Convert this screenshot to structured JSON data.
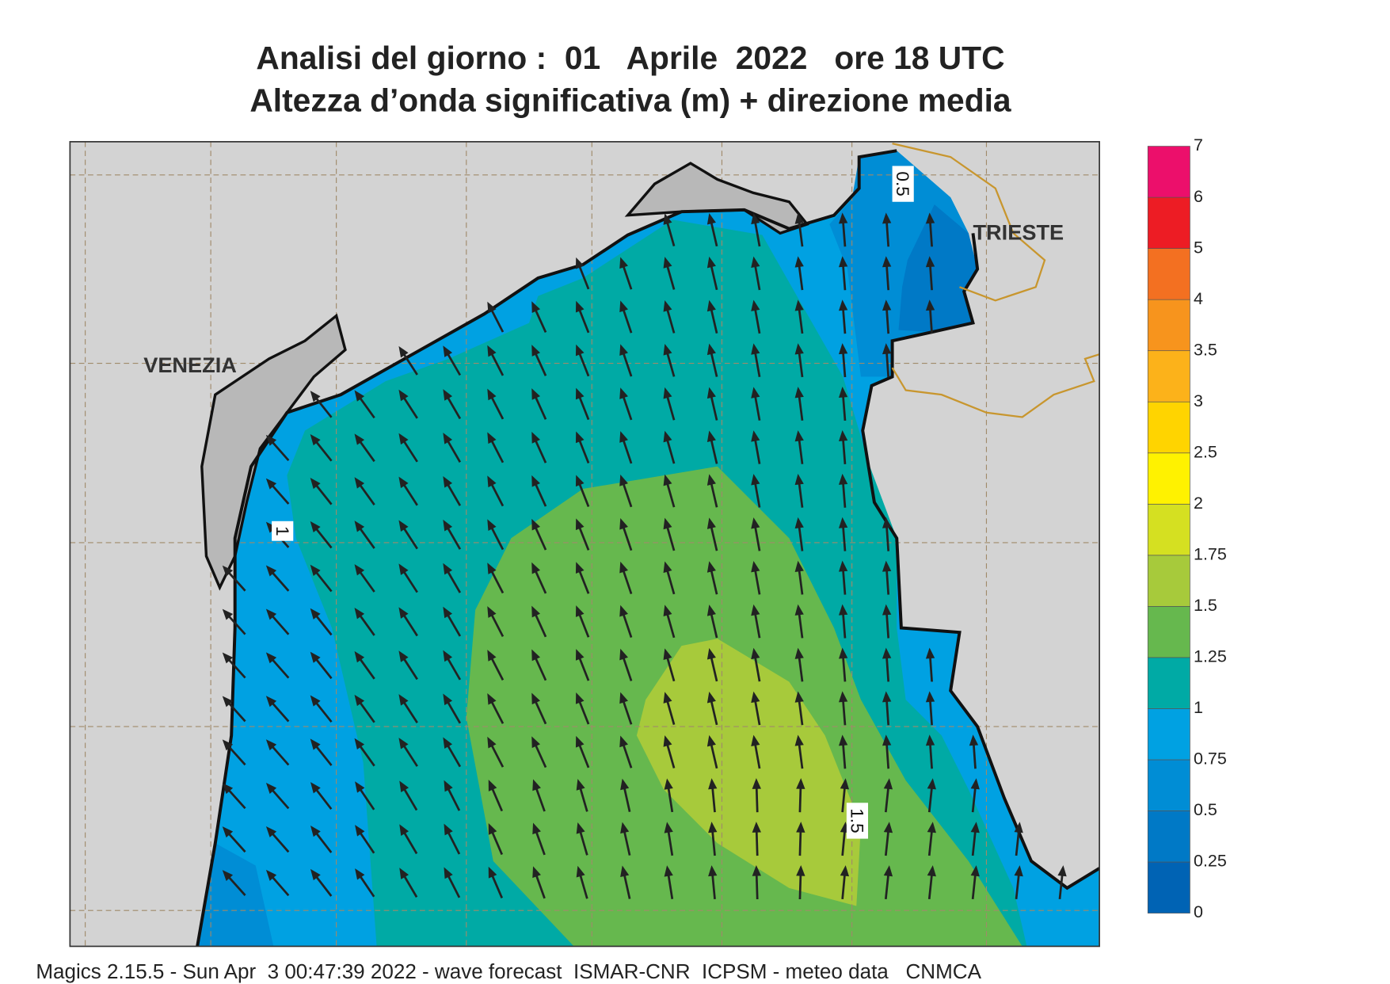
{
  "header": {
    "title": [
      "Analisi del giorno :  01   Aprile  2022   ore 18 UTC",
      "Altezza d’onda significativa (m) + direzione media"
    ]
  },
  "map": {
    "places": [
      "VENEZIA",
      "TRIESTE"
    ],
    "contour_labels": [
      "0.5",
      "1",
      "1.5"
    ]
  },
  "colorbar": {
    "levels": [
      0,
      0.25,
      0.5,
      0.75,
      1,
      1.25,
      1.5,
      1.75,
      2,
      2.5,
      3,
      3.5,
      4,
      5,
      6,
      7
    ],
    "colors": [
      "#0063b4",
      "#0079c6",
      "#008dd5",
      "#00a1e2",
      "#00aaa5",
      "#66b84e",
      "#a7ca3b",
      "#d5e021",
      "#fff200",
      "#ffd400",
      "#fcb21a",
      "#f7941d",
      "#f37021",
      "#ed1c24",
      "#ec0f6b"
    ]
  },
  "footer": "Magics 2.15.5 - Sun Apr  3 00:47:39 2022 - wave forecast  ISMAR-CNR  ICPSM - meteo data   CNMCA"
}
